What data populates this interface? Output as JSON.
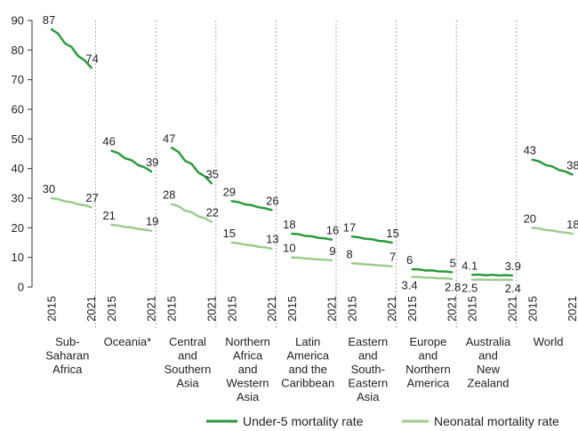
{
  "chart_data": {
    "type": "line",
    "title": "",
    "xlabel": "",
    "ylabel": "",
    "ylim": [
      0,
      90
    ],
    "yticks": [
      "0",
      "10",
      "20",
      "30",
      "40",
      "50",
      "60",
      "70",
      "80",
      "90"
    ],
    "grid": false,
    "legend_position": "bottom-right",
    "x_year_labels": [
      "2015",
      "2021"
    ],
    "series": [
      {
        "name": "Under-5 mortality rate",
        "color": "#2a9a3f"
      },
      {
        "name": "Neonatal mortality rate",
        "color": "#9ccc8c"
      }
    ],
    "panels": [
      {
        "region": [
          "Sub-",
          "Saharan",
          "Africa"
        ],
        "under5": [
          87,
          74
        ],
        "under5_labels": [
          "87",
          "74"
        ],
        "neonatal": [
          30,
          27
        ],
        "neonatal_labels": [
          "30",
          "27"
        ]
      },
      {
        "region": [
          "Oceania*"
        ],
        "under5": [
          46,
          39
        ],
        "under5_labels": [
          "46",
          "39"
        ],
        "neonatal": [
          21,
          19
        ],
        "neonatal_labels": [
          "21",
          "19"
        ]
      },
      {
        "region": [
          "Central",
          "and",
          "Southern",
          "Asia"
        ],
        "under5": [
          47,
          35
        ],
        "under5_labels": [
          "47",
          "35"
        ],
        "neonatal": [
          28,
          22
        ],
        "neonatal_labels": [
          "28",
          "22"
        ]
      },
      {
        "region": [
          "Northern",
          "Africa",
          "and",
          "Western",
          "Asia"
        ],
        "under5": [
          29,
          26
        ],
        "under5_labels": [
          "29",
          "26"
        ],
        "neonatal": [
          15,
          13
        ],
        "neonatal_labels": [
          "15",
          "13"
        ]
      },
      {
        "region": [
          "Latin",
          "America",
          "and the",
          "Caribbean"
        ],
        "under5": [
          18,
          16
        ],
        "under5_labels": [
          "18",
          "16"
        ],
        "neonatal": [
          10,
          9
        ],
        "neonatal_labels": [
          "10",
          "9"
        ]
      },
      {
        "region": [
          "Eastern",
          "and",
          "South-",
          "Eastern",
          "Asia"
        ],
        "under5": [
          17,
          15
        ],
        "under5_labels": [
          "17",
          "15"
        ],
        "neonatal": [
          8,
          7
        ],
        "neonatal_labels": [
          "8",
          "7"
        ]
      },
      {
        "region": [
          "Europe",
          "and",
          "Northern",
          "America"
        ],
        "under5": [
          6,
          5
        ],
        "under5_labels": [
          "6",
          "5"
        ],
        "neonatal": [
          3.4,
          2.8
        ],
        "neonatal_labels": [
          "3.4",
          "2.8"
        ]
      },
      {
        "region": [
          "Australia",
          "and",
          "New",
          "Zealand"
        ],
        "under5": [
          4.1,
          3.9
        ],
        "under5_labels": [
          "4.1",
          "3.9"
        ],
        "neonatal": [
          2.5,
          2.4
        ],
        "neonatal_labels": [
          "2.5",
          "2.4"
        ]
      },
      {
        "region": [
          "World"
        ],
        "under5": [
          43,
          38
        ],
        "under5_labels": [
          "43",
          "38"
        ],
        "neonatal": [
          20,
          18
        ],
        "neonatal_labels": [
          "20",
          "18"
        ]
      }
    ]
  }
}
